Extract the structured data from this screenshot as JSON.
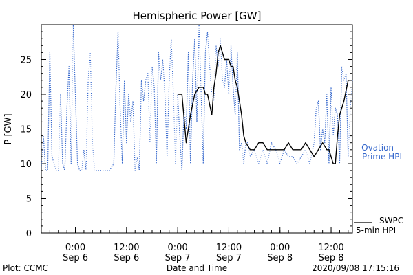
{
  "chart_data": {
    "type": "line",
    "title": "Hemispheric Power [GW]",
    "xlabel": "Date and Time",
    "ylabel": "P [GW]",
    "ylim": [
      0,
      30
    ],
    "xlim": [
      "2020-09-05T16:00",
      "2020-09-08T17:00"
    ],
    "grid": false,
    "legend_position": "right",
    "y_ticks": [
      0,
      5,
      10,
      15,
      20,
      25
    ],
    "x_ticks": [
      {
        "x": "2020-09-06T00:00",
        "time": "0:00",
        "date": "Sep 6"
      },
      {
        "x": "2020-09-06T12:00",
        "time": "12:00",
        "date": "Sep 6"
      },
      {
        "x": "2020-09-07T00:00",
        "time": "0:00",
        "date": "Sep 7"
      },
      {
        "x": "2020-09-07T12:00",
        "time": "12:00",
        "date": "Sep 7"
      },
      {
        "x": "2020-09-08T00:00",
        "time": "0:00",
        "date": "Sep 8"
      },
      {
        "x": "2020-09-08T12:00",
        "time": "12:00",
        "date": "Sep 8"
      }
    ],
    "series": [
      {
        "name": "Ovation Prime HPI",
        "legend_lines": [
          "- Ovation",
          "Prime HPI"
        ],
        "color": "#3366cc",
        "style": "dotted",
        "x": [
          "2020-09-05T16:00",
          "2020-09-05T16:30",
          "2020-09-05T17:00",
          "2020-09-05T17:30",
          "2020-09-05T18:00",
          "2020-09-05T18:30",
          "2020-09-05T19:00",
          "2020-09-05T19:30",
          "2020-09-05T20:00",
          "2020-09-05T20:30",
          "2020-09-05T21:00",
          "2020-09-05T21:30",
          "2020-09-05T22:00",
          "2020-09-05T22:30",
          "2020-09-05T23:00",
          "2020-09-05T23:30",
          "2020-09-06T00:00",
          "2020-09-06T00:30",
          "2020-09-06T01:00",
          "2020-09-06T01:30",
          "2020-09-06T02:00",
          "2020-09-06T02:30",
          "2020-09-06T03:00",
          "2020-09-06T03:30",
          "2020-09-06T04:00",
          "2020-09-06T04:30",
          "2020-09-06T05:00",
          "2020-09-06T06:00",
          "2020-09-06T07:00",
          "2020-09-06T08:00",
          "2020-09-06T09:00",
          "2020-09-06T09:30",
          "2020-09-06T10:00",
          "2020-09-06T10:30",
          "2020-09-06T11:00",
          "2020-09-06T11:30",
          "2020-09-06T12:00",
          "2020-09-06T12:30",
          "2020-09-06T13:00",
          "2020-09-06T13:30",
          "2020-09-06T14:00",
          "2020-09-06T14:30",
          "2020-09-06T15:00",
          "2020-09-06T15:30",
          "2020-09-06T16:00",
          "2020-09-06T16:30",
          "2020-09-06T17:00",
          "2020-09-06T17:30",
          "2020-09-06T18:00",
          "2020-09-06T18:30",
          "2020-09-06T19:00",
          "2020-09-06T19:30",
          "2020-09-06T20:00",
          "2020-09-06T20:30",
          "2020-09-06T21:00",
          "2020-09-06T21:30",
          "2020-09-06T22:00",
          "2020-09-06T22:30",
          "2020-09-06T23:00",
          "2020-09-06T23:30",
          "2020-09-07T00:00",
          "2020-09-07T00:30",
          "2020-09-07T01:00",
          "2020-09-07T01:30",
          "2020-09-07T02:00",
          "2020-09-07T02:30",
          "2020-09-07T03:00",
          "2020-09-07T03:30",
          "2020-09-07T04:00",
          "2020-09-07T04:30",
          "2020-09-07T05:00",
          "2020-09-07T05:30",
          "2020-09-07T06:00",
          "2020-09-07T06:30",
          "2020-09-07T07:00",
          "2020-09-07T07:30",
          "2020-09-07T08:00",
          "2020-09-07T08:30",
          "2020-09-07T09:00",
          "2020-09-07T09:30",
          "2020-09-07T10:00",
          "2020-09-07T10:30",
          "2020-09-07T11:00",
          "2020-09-07T11:30",
          "2020-09-07T12:00",
          "2020-09-07T12:30",
          "2020-09-07T13:00",
          "2020-09-07T13:30",
          "2020-09-07T14:00",
          "2020-09-07T14:30",
          "2020-09-07T15:00",
          "2020-09-07T15:30",
          "2020-09-07T16:00",
          "2020-09-07T16:30",
          "2020-09-07T17:00",
          "2020-09-07T18:00",
          "2020-09-07T19:00",
          "2020-09-07T20:00",
          "2020-09-07T21:00",
          "2020-09-07T22:00",
          "2020-09-07T23:00",
          "2020-09-08T00:00",
          "2020-09-08T01:00",
          "2020-09-08T02:00",
          "2020-09-08T03:00",
          "2020-09-08T04:00",
          "2020-09-08T05:00",
          "2020-09-08T06:00",
          "2020-09-08T07:00",
          "2020-09-08T08:00",
          "2020-09-08T08:30",
          "2020-09-08T09:00",
          "2020-09-08T09:30",
          "2020-09-08T10:00",
          "2020-09-08T10:30",
          "2020-09-08T11:00",
          "2020-09-08T11:30",
          "2020-09-08T12:00",
          "2020-09-08T12:30",
          "2020-09-08T13:00",
          "2020-09-08T13:30",
          "2020-09-08T14:00",
          "2020-09-08T14:30",
          "2020-09-08T15:00",
          "2020-09-08T15:30",
          "2020-09-08T16:00",
          "2020-09-08T16:30",
          "2020-09-08T17:00"
        ],
        "y": [
          9,
          14,
          9,
          9,
          26,
          11,
          10,
          9,
          9,
          20,
          10,
          9,
          18,
          24,
          10,
          30,
          20,
          10,
          9,
          9,
          12,
          9,
          22,
          26,
          13,
          9,
          9,
          9,
          9,
          9,
          10,
          21,
          29,
          18,
          10,
          22,
          13,
          20,
          16,
          19,
          9,
          11,
          9,
          22,
          19,
          22,
          23,
          13,
          24,
          21,
          10,
          26,
          22,
          25,
          20,
          11,
          22,
          28,
          20,
          10,
          20,
          14,
          9,
          18,
          15,
          26,
          10,
          22,
          28,
          16,
          30,
          20,
          10,
          26,
          29,
          24,
          20,
          19,
          27,
          24,
          28,
          22,
          21,
          25,
          20,
          27,
          21,
          17,
          26,
          12,
          13,
          10,
          13,
          13,
          11,
          12,
          10,
          12,
          10,
          13,
          12,
          10,
          12,
          11,
          11,
          10,
          11,
          12,
          10,
          13,
          18,
          19,
          12,
          15,
          13,
          20,
          10,
          21,
          14,
          18,
          17,
          10,
          24,
          22,
          23,
          11,
          18,
          22
        ]
      },
      {
        "name": "SWPC 5-min HPI",
        "legend_lines": [
          "SWPC",
          "5-min HPI"
        ],
        "color": "#000000",
        "style": "solid",
        "x": [
          "2020-09-07T00:00",
          "2020-09-07T01:00",
          "2020-09-07T02:00",
          "2020-09-07T03:00",
          "2020-09-07T04:00",
          "2020-09-07T05:00",
          "2020-09-07T06:00",
          "2020-09-07T06:30",
          "2020-09-07T07:00",
          "2020-09-07T08:00",
          "2020-09-07T08:30",
          "2020-09-07T09:00",
          "2020-09-07T09:30",
          "2020-09-07T10:00",
          "2020-09-07T11:00",
          "2020-09-07T12:00",
          "2020-09-07T12:30",
          "2020-09-07T13:00",
          "2020-09-07T13:30",
          "2020-09-07T14:00",
          "2020-09-07T14:30",
          "2020-09-07T15:00",
          "2020-09-07T15:30",
          "2020-09-07T16:00",
          "2020-09-07T17:00",
          "2020-09-07T18:00",
          "2020-09-07T19:00",
          "2020-09-07T20:00",
          "2020-09-07T21:00",
          "2020-09-07T22:00",
          "2020-09-08T00:00",
          "2020-09-08T01:00",
          "2020-09-08T02:00",
          "2020-09-08T03:00",
          "2020-09-08T04:00",
          "2020-09-08T05:00",
          "2020-09-08T06:00",
          "2020-09-08T07:00",
          "2020-09-08T08:00",
          "2020-09-08T09:00",
          "2020-09-08T10:00",
          "2020-09-08T11:00",
          "2020-09-08T11:30",
          "2020-09-08T12:00",
          "2020-09-08T12:30",
          "2020-09-08T13:00",
          "2020-09-08T13:30",
          "2020-09-08T14:00",
          "2020-09-08T15:00",
          "2020-09-08T16:00",
          "2020-09-08T16:30",
          "2020-09-08T17:00"
        ],
        "y": [
          20,
          20,
          13,
          17,
          20,
          21,
          21,
          20,
          20,
          17,
          21,
          23,
          26,
          27,
          25,
          25,
          24,
          24,
          22,
          21,
          19,
          17,
          14,
          13,
          12,
          12,
          13,
          13,
          12,
          12,
          12,
          12,
          13,
          12,
          12,
          12,
          13,
          12,
          11,
          12,
          13,
          12,
          12,
          11,
          10,
          10,
          14,
          17,
          19,
          22,
          22,
          22
        ]
      }
    ],
    "annotations": {
      "footer_left": "Plot: CCMC",
      "footer_right": "2020/09/08 17:15:16"
    }
  }
}
